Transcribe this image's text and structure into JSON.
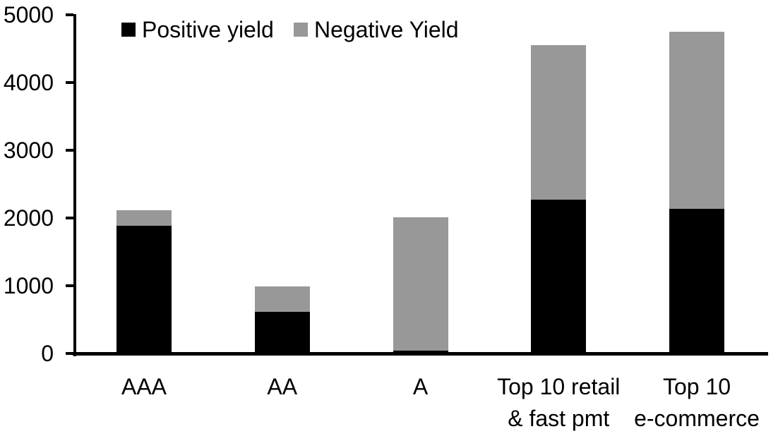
{
  "chart_data": {
    "type": "bar",
    "stacked": true,
    "title": "",
    "xlabel": "",
    "ylabel": "",
    "categories": [
      {
        "id": "aaa",
        "lines": [
          "AAA"
        ]
      },
      {
        "id": "aa",
        "lines": [
          "AA"
        ]
      },
      {
        "id": "a",
        "lines": [
          "A"
        ]
      },
      {
        "id": "top-10-retail-fast-pmt",
        "lines": [
          "Top 10 retail",
          "& fast pmt"
        ]
      },
      {
        "id": "top-10-e-commerce",
        "lines": [
          "Top 10",
          "e-commerce"
        ]
      }
    ],
    "series": [
      {
        "name": "Positive yield",
        "color": "#000000",
        "values": [
          1890,
          610,
          40,
          2270,
          2140
        ]
      },
      {
        "name": "Negative Yield",
        "color": "#989898",
        "values": [
          220,
          380,
          1970,
          2280,
          2610
        ]
      }
    ],
    "totals": [
      2110,
      990,
      2010,
      4550,
      4750
    ],
    "ylim": [
      0,
      5000
    ],
    "ytick_values": [
      0,
      1000,
      2000,
      3000,
      4000,
      5000
    ],
    "ytick_labels": [
      "0",
      "1000",
      "2000",
      "3000",
      "4000",
      "5000"
    ],
    "grid": false,
    "legend_position": "top",
    "axis_color": "#000000",
    "background_color": "#ffffff"
  }
}
